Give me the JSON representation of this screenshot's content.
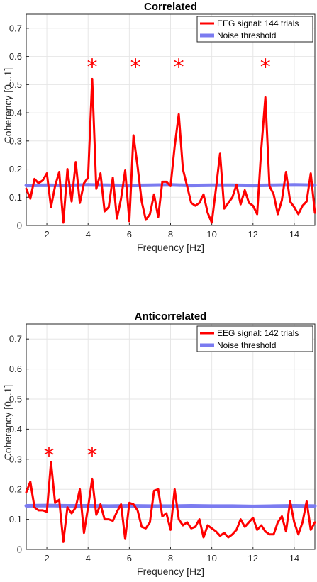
{
  "colors": {
    "signal": "#ff0000",
    "noise": "#7b7bf0",
    "grid": "#e6e6e6",
    "axis": "#262626"
  },
  "chart_data": [
    {
      "type": "line",
      "title": "Correlated",
      "xlabel": "Frequency [Hz]",
      "ylabel": "Coherency [0...1]",
      "xlim": [
        1,
        15
      ],
      "ylim": [
        0,
        0.75
      ],
      "xticks": [
        2,
        4,
        6,
        8,
        10,
        12,
        14
      ],
      "yticks": [
        0,
        0.1,
        0.2,
        0.3,
        0.4,
        0.5,
        0.6,
        0.7
      ],
      "grid": true,
      "legend_position": "top-right",
      "series": [
        {
          "name": "EEG signal: 144 trials",
          "x": [
            1.0,
            1.2,
            1.4,
            1.6,
            1.8,
            2.0,
            2.2,
            2.4,
            2.6,
            2.8,
            3.0,
            3.2,
            3.4,
            3.6,
            3.8,
            4.0,
            4.2,
            4.4,
            4.6,
            4.8,
            5.0,
            5.2,
            5.4,
            5.6,
            5.8,
            6.0,
            6.2,
            6.4,
            6.6,
            6.8,
            7.0,
            7.2,
            7.4,
            7.6,
            7.8,
            8.0,
            8.2,
            8.4,
            8.6,
            8.8,
            9.0,
            9.2,
            9.4,
            9.6,
            9.8,
            10.0,
            10.2,
            10.4,
            10.6,
            10.8,
            11.0,
            11.2,
            11.4,
            11.6,
            11.8,
            12.0,
            12.2,
            12.4,
            12.6,
            12.8,
            13.0,
            13.2,
            13.4,
            13.6,
            13.8,
            14.0,
            14.2,
            14.4,
            14.6,
            14.8,
            15.0
          ],
          "y": [
            0.13,
            0.095,
            0.165,
            0.15,
            0.16,
            0.185,
            0.065,
            0.14,
            0.19,
            0.01,
            0.2,
            0.085,
            0.225,
            0.08,
            0.15,
            0.17,
            0.52,
            0.13,
            0.185,
            0.05,
            0.065,
            0.17,
            0.025,
            0.095,
            0.195,
            0.015,
            0.32,
            0.21,
            0.085,
            0.02,
            0.04,
            0.11,
            0.03,
            0.155,
            0.155,
            0.14,
            0.28,
            0.395,
            0.2,
            0.14,
            0.08,
            0.07,
            0.08,
            0.11,
            0.045,
            0.01,
            0.13,
            0.255,
            0.06,
            0.08,
            0.1,
            0.145,
            0.075,
            0.125,
            0.08,
            0.07,
            0.04,
            0.27,
            0.455,
            0.14,
            0.11,
            0.04,
            0.09,
            0.19,
            0.085,
            0.065,
            0.04,
            0.07,
            0.085,
            0.185,
            0.045
          ],
          "color": "#ff0000"
        },
        {
          "name": "Noise threshold",
          "x": [
            1.0,
            2.0,
            3.0,
            4.0,
            5.0,
            6.0,
            7.0,
            8.0,
            9.0,
            10.0,
            11.0,
            12.0,
            13.0,
            14.0,
            15.0
          ],
          "y": [
            0.142,
            0.143,
            0.142,
            0.144,
            0.143,
            0.142,
            0.143,
            0.144,
            0.142,
            0.143,
            0.143,
            0.142,
            0.143,
            0.144,
            0.143
          ],
          "color": "#7b7bf0"
        }
      ],
      "markers": {
        "symbol": "*",
        "x": [
          4.2,
          6.3,
          8.4,
          12.6
        ],
        "y": [
          0.57,
          0.57,
          0.57,
          0.57
        ]
      }
    },
    {
      "type": "line",
      "title": "Anticorrelated",
      "xlabel": "Frequency [Hz]",
      "ylabel": "Coherency [0...1]",
      "xlim": [
        1,
        15
      ],
      "ylim": [
        0,
        0.75
      ],
      "xticks": [
        2,
        4,
        6,
        8,
        10,
        12,
        14
      ],
      "yticks": [
        0,
        0.1,
        0.2,
        0.3,
        0.4,
        0.5,
        0.6,
        0.7
      ],
      "grid": true,
      "legend_position": "top-right",
      "series": [
        {
          "name": "EEG signal: 142 trials",
          "x": [
            1.0,
            1.2,
            1.4,
            1.6,
            1.8,
            2.0,
            2.2,
            2.4,
            2.6,
            2.8,
            3.0,
            3.2,
            3.4,
            3.6,
            3.8,
            4.0,
            4.2,
            4.4,
            4.6,
            4.8,
            5.0,
            5.2,
            5.4,
            5.6,
            5.8,
            6.0,
            6.2,
            6.4,
            6.6,
            6.8,
            7.0,
            7.2,
            7.4,
            7.6,
            7.8,
            8.0,
            8.2,
            8.4,
            8.6,
            8.8,
            9.0,
            9.2,
            9.4,
            9.6,
            9.8,
            10.0,
            10.2,
            10.4,
            10.6,
            10.8,
            11.0,
            11.2,
            11.4,
            11.6,
            11.8,
            12.0,
            12.2,
            12.4,
            12.6,
            12.8,
            13.0,
            13.2,
            13.4,
            13.6,
            13.8,
            14.0,
            14.2,
            14.4,
            14.6,
            14.8,
            15.0
          ],
          "y": [
            0.19,
            0.225,
            0.14,
            0.13,
            0.13,
            0.125,
            0.29,
            0.155,
            0.165,
            0.025,
            0.14,
            0.12,
            0.14,
            0.2,
            0.055,
            0.14,
            0.235,
            0.115,
            0.15,
            0.1,
            0.1,
            0.095,
            0.125,
            0.15,
            0.035,
            0.155,
            0.15,
            0.13,
            0.075,
            0.07,
            0.09,
            0.195,
            0.2,
            0.11,
            0.12,
            0.065,
            0.2,
            0.1,
            0.08,
            0.09,
            0.07,
            0.075,
            0.1,
            0.04,
            0.08,
            0.07,
            0.06,
            0.045,
            0.055,
            0.04,
            0.05,
            0.065,
            0.1,
            0.075,
            0.09,
            0.105,
            0.065,
            0.08,
            0.06,
            0.05,
            0.05,
            0.09,
            0.11,
            0.06,
            0.16,
            0.09,
            0.05,
            0.09,
            0.16,
            0.065,
            0.09
          ],
          "color": "#ff0000"
        },
        {
          "name": "Noise threshold",
          "x": [
            1.0,
            2.0,
            3.0,
            4.0,
            5.0,
            6.0,
            7.0,
            8.0,
            9.0,
            10.0,
            11.0,
            12.0,
            13.0,
            14.0,
            15.0
          ],
          "y": [
            0.145,
            0.146,
            0.145,
            0.145,
            0.144,
            0.145,
            0.144,
            0.144,
            0.145,
            0.144,
            0.144,
            0.143,
            0.144,
            0.145,
            0.144
          ],
          "color": "#7b7bf0"
        }
      ],
      "markers": {
        "symbol": "*",
        "x": [
          2.1,
          4.2
        ],
        "y": [
          0.32,
          0.32
        ]
      }
    }
  ]
}
